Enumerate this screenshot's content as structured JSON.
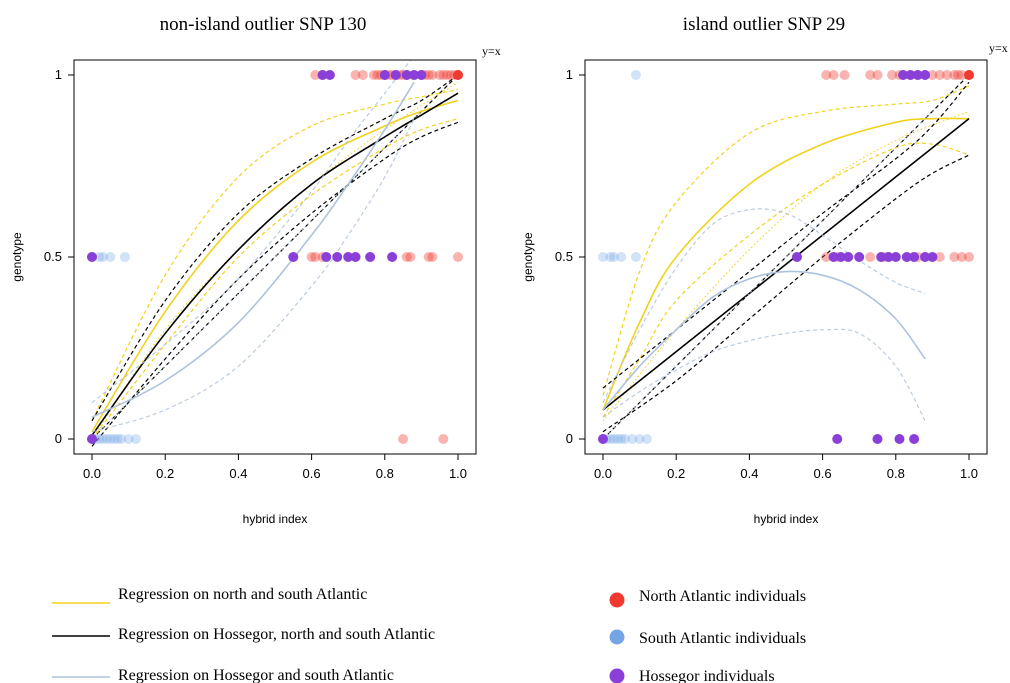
{
  "colors": {
    "north": "#f03a2f",
    "south": "#74a6e6",
    "hossegor": "#8a3fd8",
    "reg_ns": "#f2d21d",
    "reg_hns": "#000000",
    "reg_hs": "#aec3db"
  },
  "legend": {
    "lines": [
      {
        "label": "Regression on north and south Atlantic",
        "color": "#f2d21d"
      },
      {
        "label": "Regression on Hossegor, north and south Atlantic",
        "color": "#000000"
      },
      {
        "label": "Regression on Hossegor and south Atlantic",
        "color": "#aec3db"
      }
    ],
    "points": [
      {
        "label": "North Atlantic individuals",
        "color": "#f03a2f"
      },
      {
        "label": "South Atlantic individuals",
        "color": "#74a6e6"
      },
      {
        "label": "Hossegor individuals",
        "color": "#8a3fd8"
      }
    ]
  },
  "chart_data": [
    {
      "type": "scatter",
      "title": "non-island outlier SNP 130",
      "xlabel": "hybrid index",
      "ylabel": "genotype",
      "xlim": [
        0,
        1
      ],
      "ylim": [
        0,
        1
      ],
      "xticks": [
        "0.0",
        "0.2",
        "0.4",
        "0.6",
        "0.8",
        "1.0"
      ],
      "yticks": [
        "0",
        "0.5",
        "1"
      ],
      "annotation": "y=x",
      "points": {
        "south": [
          {
            "x": 0.0,
            "y": 0.5
          },
          {
            "x": 0.02,
            "y": 0.5
          },
          {
            "x": 0.03,
            "y": 0.5
          },
          {
            "x": 0.05,
            "y": 0.5
          },
          {
            "x": 0.09,
            "y": 0.5
          },
          {
            "x": 0.0,
            "y": 0
          },
          {
            "x": 0.01,
            "y": 0
          },
          {
            "x": 0.02,
            "y": 0
          },
          {
            "x": 0.03,
            "y": 0
          },
          {
            "x": 0.04,
            "y": 0
          },
          {
            "x": 0.05,
            "y": 0
          },
          {
            "x": 0.06,
            "y": 0
          },
          {
            "x": 0.07,
            "y": 0
          },
          {
            "x": 0.08,
            "y": 0
          },
          {
            "x": 0.1,
            "y": 0
          },
          {
            "x": 0.12,
            "y": 0
          }
        ],
        "north": [
          {
            "x": 0.61,
            "y": 1
          },
          {
            "x": 0.63,
            "y": 1
          },
          {
            "x": 0.72,
            "y": 1
          },
          {
            "x": 0.74,
            "y": 1
          },
          {
            "x": 0.77,
            "y": 1
          },
          {
            "x": 0.78,
            "y": 1
          },
          {
            "x": 0.79,
            "y": 1
          },
          {
            "x": 0.8,
            "y": 1
          },
          {
            "x": 0.81,
            "y": 1
          },
          {
            "x": 0.82,
            "y": 1
          },
          {
            "x": 0.83,
            "y": 1
          },
          {
            "x": 0.84,
            "y": 1
          },
          {
            "x": 0.85,
            "y": 1
          },
          {
            "x": 0.86,
            "y": 1
          },
          {
            "x": 0.88,
            "y": 1
          },
          {
            "x": 0.9,
            "y": 1
          },
          {
            "x": 0.91,
            "y": 1
          },
          {
            "x": 0.92,
            "y": 1
          },
          {
            "x": 0.93,
            "y": 1
          },
          {
            "x": 0.95,
            "y": 1
          },
          {
            "x": 0.96,
            "y": 1
          },
          {
            "x": 0.97,
            "y": 1
          },
          {
            "x": 0.98,
            "y": 1
          },
          {
            "x": 0.99,
            "y": 1
          },
          {
            "x": 1.0,
            "y": 1
          },
          {
            "x": 0.6,
            "y": 0.5
          },
          {
            "x": 0.61,
            "y": 0.5
          },
          {
            "x": 0.63,
            "y": 0.5
          },
          {
            "x": 0.86,
            "y": 0.5
          },
          {
            "x": 0.87,
            "y": 0.5
          },
          {
            "x": 0.92,
            "y": 0.5
          },
          {
            "x": 0.93,
            "y": 0.5
          },
          {
            "x": 1.0,
            "y": 0.5
          },
          {
            "x": 0.85,
            "y": 0
          },
          {
            "x": 0.96,
            "y": 0
          }
        ],
        "hossegor": [
          {
            "x": 0.63,
            "y": 1
          },
          {
            "x": 0.65,
            "y": 1
          },
          {
            "x": 0.8,
            "y": 1
          },
          {
            "x": 0.83,
            "y": 1
          },
          {
            "x": 0.86,
            "y": 1
          },
          {
            "x": 0.88,
            "y": 1
          },
          {
            "x": 0.9,
            "y": 1
          },
          {
            "x": 0.0,
            "y": 0.5
          },
          {
            "x": 0.55,
            "y": 0.5
          },
          {
            "x": 0.64,
            "y": 0.5
          },
          {
            "x": 0.67,
            "y": 0.5
          },
          {
            "x": 0.7,
            "y": 0.5
          },
          {
            "x": 0.72,
            "y": 0.5
          },
          {
            "x": 0.76,
            "y": 0.5
          },
          {
            "x": 0.82,
            "y": 0.5
          },
          {
            "x": 0.0,
            "y": 0
          }
        ]
      },
      "curves": [
        {
          "series": "reg_ns",
          "style": "solid",
          "x": [
            0,
            0.2,
            0.4,
            0.6,
            0.8,
            0.9,
            1.0
          ],
          "y": [
            0.02,
            0.35,
            0.6,
            0.76,
            0.86,
            0.9,
            0.93
          ]
        },
        {
          "series": "reg_ns",
          "style": "upper",
          "x": [
            0,
            0.2,
            0.4,
            0.6,
            0.8,
            0.9,
            1.0
          ],
          "y": [
            0.05,
            0.45,
            0.72,
            0.86,
            0.92,
            0.94,
            0.96
          ]
        },
        {
          "series": "reg_ns",
          "style": "lower",
          "x": [
            0,
            0.2,
            0.4,
            0.6,
            0.8,
            0.9,
            1.0
          ],
          "y": [
            0.0,
            0.26,
            0.5,
            0.67,
            0.8,
            0.85,
            0.88
          ]
        },
        {
          "series": "reg_ns",
          "style": "dotted",
          "x": [
            0,
            0.2,
            0.4,
            0.6,
            0.8,
            1.0
          ],
          "y": [
            0.0,
            0.3,
            0.52,
            0.7,
            0.85,
            0.98
          ]
        },
        {
          "series": "reg_hns",
          "style": "solid",
          "x": [
            0,
            0.2,
            0.4,
            0.6,
            0.8,
            0.9,
            1.0
          ],
          "y": [
            0.01,
            0.29,
            0.52,
            0.7,
            0.83,
            0.89,
            0.95
          ]
        },
        {
          "series": "reg_hns",
          "style": "upper",
          "x": [
            0,
            0.2,
            0.4,
            0.6,
            0.8,
            0.9,
            1.0
          ],
          "y": [
            0.05,
            0.38,
            0.62,
            0.77,
            0.88,
            0.93,
            1.0
          ]
        },
        {
          "series": "reg_hns",
          "style": "lower",
          "x": [
            0,
            0.2,
            0.4,
            0.6,
            0.8,
            0.9,
            1.0
          ],
          "y": [
            -0.02,
            0.22,
            0.44,
            0.62,
            0.77,
            0.83,
            0.87
          ]
        },
        {
          "series": "reg_hs",
          "style": "solid",
          "x": [
            0,
            0.2,
            0.4,
            0.6,
            0.7,
            0.8,
            0.88
          ],
          "y": [
            0.06,
            0.16,
            0.32,
            0.56,
            0.7,
            0.85,
            0.98
          ]
        },
        {
          "series": "reg_hs",
          "style": "upper",
          "x": [
            0,
            0.2,
            0.4,
            0.6,
            0.7,
            0.8,
            0.87
          ],
          "y": [
            0.1,
            0.26,
            0.44,
            0.68,
            0.82,
            0.95,
            1.04
          ]
        },
        {
          "series": "reg_hs",
          "style": "lower",
          "x": [
            0,
            0.2,
            0.4,
            0.6,
            0.7,
            0.8,
            0.88
          ],
          "y": [
            0.02,
            0.08,
            0.2,
            0.42,
            0.56,
            0.72,
            0.88
          ]
        },
        {
          "series": "reg_hs",
          "style": "dotted",
          "x": [
            0,
            0.2,
            0.4,
            0.6,
            0.8,
            0.9
          ],
          "y": [
            0.0,
            0.2,
            0.4,
            0.6,
            0.8,
            0.9
          ]
        }
      ]
    },
    {
      "type": "scatter",
      "title": "island outlier SNP 29",
      "xlabel": "hybrid index",
      "ylabel": "genotype",
      "xlim": [
        0,
        1
      ],
      "ylim": [
        0,
        1
      ],
      "xticks": [
        "0.0",
        "0.2",
        "0.4",
        "0.6",
        "0.8",
        "1.0"
      ],
      "yticks": [
        "0",
        "0.5",
        "1"
      ],
      "annotation": "y=x",
      "points": {
        "south": [
          {
            "x": 0.09,
            "y": 1
          },
          {
            "x": 0.0,
            "y": 0.5
          },
          {
            "x": 0.02,
            "y": 0.5
          },
          {
            "x": 0.03,
            "y": 0.5
          },
          {
            "x": 0.05,
            "y": 0.5
          },
          {
            "x": 0.09,
            "y": 0.5
          },
          {
            "x": 0.0,
            "y": 0
          },
          {
            "x": 0.01,
            "y": 0
          },
          {
            "x": 0.02,
            "y": 0
          },
          {
            "x": 0.03,
            "y": 0
          },
          {
            "x": 0.04,
            "y": 0
          },
          {
            "x": 0.05,
            "y": 0
          },
          {
            "x": 0.06,
            "y": 0
          },
          {
            "x": 0.08,
            "y": 0
          },
          {
            "x": 0.1,
            "y": 0
          },
          {
            "x": 0.12,
            "y": 0
          }
        ],
        "north": [
          {
            "x": 0.61,
            "y": 1
          },
          {
            "x": 0.63,
            "y": 1
          },
          {
            "x": 0.66,
            "y": 1
          },
          {
            "x": 0.73,
            "y": 1
          },
          {
            "x": 0.75,
            "y": 1
          },
          {
            "x": 0.79,
            "y": 1
          },
          {
            "x": 0.81,
            "y": 1
          },
          {
            "x": 0.82,
            "y": 1
          },
          {
            "x": 0.84,
            "y": 1
          },
          {
            "x": 0.86,
            "y": 1
          },
          {
            "x": 0.88,
            "y": 1
          },
          {
            "x": 0.9,
            "y": 1
          },
          {
            "x": 0.92,
            "y": 1
          },
          {
            "x": 0.94,
            "y": 1
          },
          {
            "x": 0.96,
            "y": 1
          },
          {
            "x": 0.97,
            "y": 1
          },
          {
            "x": 0.98,
            "y": 1
          },
          {
            "x": 1.0,
            "y": 1
          },
          {
            "x": 0.61,
            "y": 0.5
          },
          {
            "x": 0.64,
            "y": 0.5
          },
          {
            "x": 0.73,
            "y": 0.5
          },
          {
            "x": 0.77,
            "y": 0.5
          },
          {
            "x": 0.86,
            "y": 0.5
          },
          {
            "x": 0.92,
            "y": 0.5
          },
          {
            "x": 0.96,
            "y": 0.5
          },
          {
            "x": 0.98,
            "y": 0.5
          },
          {
            "x": 1.0,
            "y": 0.5
          }
        ],
        "hossegor": [
          {
            "x": 0.82,
            "y": 1
          },
          {
            "x": 0.84,
            "y": 1
          },
          {
            "x": 0.86,
            "y": 1
          },
          {
            "x": 0.88,
            "y": 1
          },
          {
            "x": 0.53,
            "y": 0.5
          },
          {
            "x": 0.63,
            "y": 0.5
          },
          {
            "x": 0.65,
            "y": 0.5
          },
          {
            "x": 0.67,
            "y": 0.5
          },
          {
            "x": 0.7,
            "y": 0.5
          },
          {
            "x": 0.76,
            "y": 0.5
          },
          {
            "x": 0.78,
            "y": 0.5
          },
          {
            "x": 0.8,
            "y": 0.5
          },
          {
            "x": 0.83,
            "y": 0.5
          },
          {
            "x": 0.85,
            "y": 0.5
          },
          {
            "x": 0.88,
            "y": 0.5
          },
          {
            "x": 0.9,
            "y": 0.5
          },
          {
            "x": 0.0,
            "y": 0
          },
          {
            "x": 0.64,
            "y": 0
          },
          {
            "x": 0.75,
            "y": 0
          },
          {
            "x": 0.81,
            "y": 0
          },
          {
            "x": 0.85,
            "y": 0
          }
        ]
      },
      "curves": [
        {
          "series": "reg_ns",
          "style": "solid",
          "x": [
            0,
            0.1,
            0.2,
            0.4,
            0.6,
            0.8,
            0.9,
            1.0
          ],
          "y": [
            0.08,
            0.32,
            0.5,
            0.7,
            0.81,
            0.87,
            0.88,
            0.88
          ]
        },
        {
          "series": "reg_ns",
          "style": "upper",
          "x": [
            0,
            0.1,
            0.2,
            0.4,
            0.6,
            0.8,
            0.9,
            1.0
          ],
          "y": [
            0.12,
            0.46,
            0.65,
            0.84,
            0.9,
            0.92,
            0.93,
            0.97
          ]
        },
        {
          "series": "reg_ns",
          "style": "lower",
          "x": [
            0,
            0.1,
            0.2,
            0.4,
            0.6,
            0.8,
            0.9,
            1.0
          ],
          "y": [
            0.06,
            0.22,
            0.38,
            0.56,
            0.7,
            0.8,
            0.81,
            0.78
          ]
        },
        {
          "series": "reg_ns",
          "style": "dotted",
          "x": [
            0,
            0.2,
            0.4,
            0.6,
            0.8,
            1.0
          ],
          "y": [
            0.05,
            0.3,
            0.52,
            0.7,
            0.82,
            0.9
          ]
        },
        {
          "series": "reg_hns",
          "style": "solid",
          "x": [
            0,
            0.2,
            0.4,
            0.6,
            0.8,
            1.0
          ],
          "y": [
            0.08,
            0.24,
            0.4,
            0.56,
            0.72,
            0.88
          ]
        },
        {
          "series": "reg_hns",
          "style": "upper",
          "x": [
            0,
            0.2,
            0.4,
            0.6,
            0.8,
            0.9,
            1.0
          ],
          "y": [
            0.14,
            0.3,
            0.46,
            0.62,
            0.77,
            0.86,
            0.98
          ]
        },
        {
          "series": "reg_hns",
          "style": "lower",
          "x": [
            0,
            0.2,
            0.4,
            0.6,
            0.8,
            0.9,
            1.0
          ],
          "y": [
            0.02,
            0.16,
            0.33,
            0.5,
            0.66,
            0.73,
            0.78
          ]
        },
        {
          "series": "reg_hs",
          "style": "solid",
          "x": [
            0,
            0.1,
            0.2,
            0.3,
            0.4,
            0.5,
            0.6,
            0.7,
            0.8,
            0.88
          ],
          "y": [
            0.08,
            0.2,
            0.3,
            0.39,
            0.44,
            0.46,
            0.45,
            0.41,
            0.33,
            0.22
          ]
        },
        {
          "series": "reg_hs",
          "style": "upper",
          "x": [
            0,
            0.1,
            0.2,
            0.3,
            0.4,
            0.5,
            0.6,
            0.7,
            0.8,
            0.88
          ],
          "y": [
            0.1,
            0.3,
            0.47,
            0.59,
            0.63,
            0.62,
            0.56,
            0.49,
            0.43,
            0.4
          ]
        },
        {
          "series": "reg_hs",
          "style": "lower",
          "x": [
            0,
            0.1,
            0.2,
            0.3,
            0.4,
            0.5,
            0.6,
            0.7,
            0.8,
            0.88
          ],
          "y": [
            0.06,
            0.13,
            0.19,
            0.24,
            0.27,
            0.29,
            0.3,
            0.29,
            0.2,
            0.05
          ]
        },
        {
          "series": "reg_hs",
          "style": "dotted",
          "x": [
            0,
            0.2,
            0.4,
            0.6,
            0.8,
            0.9
          ],
          "y": [
            0.0,
            0.2,
            0.4,
            0.6,
            0.8,
            0.9
          ]
        }
      ]
    }
  ]
}
